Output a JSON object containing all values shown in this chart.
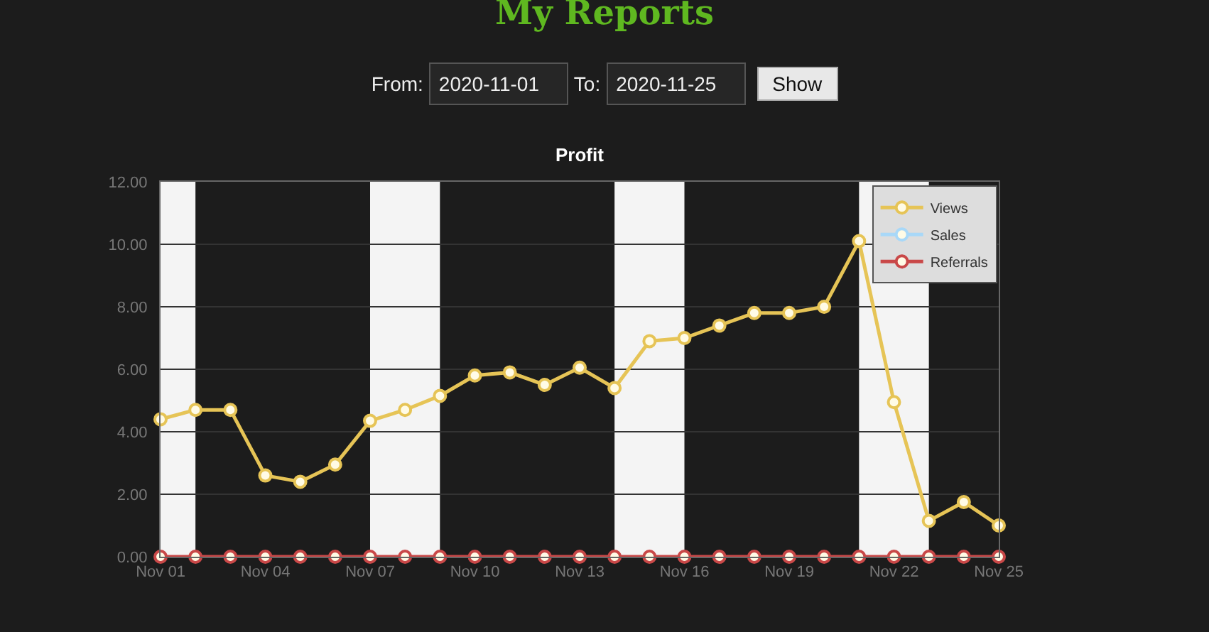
{
  "chart_data": {
    "type": "line",
    "title": "My Reports",
    "subtitle": "Profit",
    "annotations": [
      "From:",
      "2020-11-01",
      "To:",
      "2020-11-25",
      "Show"
    ],
    "x": [
      "2020-11-01",
      "2020-11-02",
      "2020-11-03",
      "2020-11-04",
      "2020-11-05",
      "2020-11-06",
      "2020-11-07",
      "2020-11-08",
      "2020-11-09",
      "2020-11-10",
      "2020-11-11",
      "2020-11-12",
      "2020-11-13",
      "2020-11-14",
      "2020-11-15",
      "2020-11-16",
      "2020-11-17",
      "2020-11-18",
      "2020-11-19",
      "2020-11-20",
      "2020-11-21",
      "2020-11-22",
      "2020-11-23",
      "2020-11-24",
      "2020-11-25"
    ],
    "series": [
      {
        "name": "Views",
        "color": "#e6c456",
        "values": [
          4.4,
          4.7,
          4.7,
          2.6,
          2.4,
          2.95,
          4.35,
          4.7,
          5.15,
          5.8,
          5.9,
          5.5,
          6.05,
          5.4,
          6.9,
          7.0,
          7.4,
          7.8,
          7.8,
          8.0,
          10.1,
          4.95,
          1.15,
          1.75,
          1.0
        ]
      },
      {
        "name": "Sales",
        "color": "#a8d8f8",
        "values": [
          null,
          null,
          null,
          null,
          null,
          null,
          null,
          null,
          null,
          null,
          null,
          null,
          null,
          null,
          null,
          null,
          null,
          null,
          null,
          null,
          null,
          null,
          null,
          null,
          null
        ]
      },
      {
        "name": "Referrals",
        "color": "#c94848",
        "values": [
          0,
          0,
          0,
          0,
          0,
          0,
          0,
          0,
          0,
          0,
          0,
          0,
          0,
          0,
          0,
          0,
          0,
          0,
          0,
          0,
          0,
          0,
          0,
          0,
          0
        ]
      }
    ],
    "xlim": [
      "2020-11-01",
      "2020-11-25"
    ],
    "xticks": [
      {
        "value": "2020-11-01",
        "label": "Nov 01"
      },
      {
        "value": "2020-11-04",
        "label": "Nov 04"
      },
      {
        "value": "2020-11-07",
        "label": "Nov 07"
      },
      {
        "value": "2020-11-10",
        "label": "Nov 10"
      },
      {
        "value": "2020-11-13",
        "label": "Nov 13"
      },
      {
        "value": "2020-11-16",
        "label": "Nov 16"
      },
      {
        "value": "2020-11-19",
        "label": "Nov 19"
      },
      {
        "value": "2020-11-22",
        "label": "Nov 22"
      },
      {
        "value": "2020-11-25",
        "label": "Nov 25"
      }
    ],
    "ylim": [
      0,
      12
    ],
    "yticks": [
      {
        "value": 0,
        "label": "0.00"
      },
      {
        "value": 2,
        "label": "2.00"
      },
      {
        "value": 4,
        "label": "4.00"
      },
      {
        "value": 6,
        "label": "6.00"
      },
      {
        "value": 8,
        "label": "8.00"
      },
      {
        "value": 10,
        "label": "10.00"
      },
      {
        "value": 12,
        "label": "12.00"
      }
    ],
    "bands": [
      {
        "axis": "x",
        "from": "2020-11-01",
        "to": "2020-11-02",
        "color": "#f4f4f4"
      },
      {
        "axis": "x",
        "from": "2020-11-07",
        "to": "2020-11-09",
        "color": "#f4f4f4"
      },
      {
        "axis": "x",
        "from": "2020-11-14",
        "to": "2020-11-16",
        "color": "#f4f4f4"
      },
      {
        "axis": "x",
        "from": "2020-11-21",
        "to": "2020-11-23",
        "color": "#f4f4f4"
      }
    ],
    "grid": "y",
    "legend": "top right",
    "marker": "circle",
    "line_style": "solid"
  }
}
